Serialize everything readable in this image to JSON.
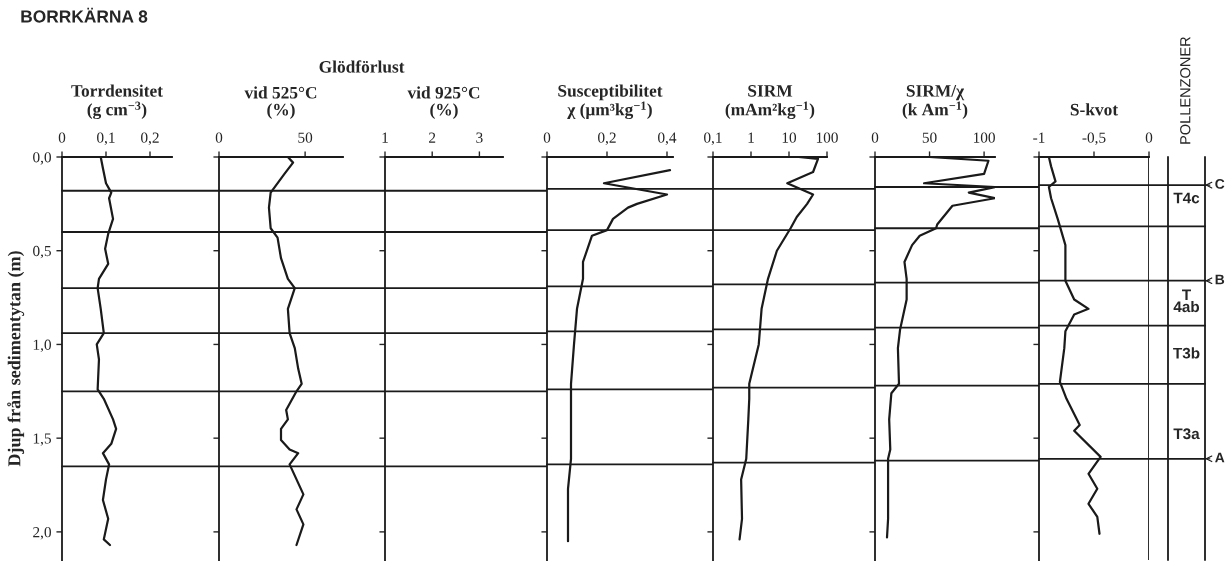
{
  "chart_data": [
    {
      "type": "line",
      "title": "Torrdensitet\n(g cm$^{−3}$)",
      "ylabel": "Djup från sedimentytan (m)",
      "annotations": [
        "BORRKÄRNA 8"
      ],
      "xlim": [
        0,
        0.25
      ],
      "xticks": [
        0,
        {
          "value": 0.1,
          "label": "0,1"
        },
        {
          "value": 0.2,
          "label": "0,2"
        }
      ],
      "ylim": [
        2.15,
        0
      ],
      "yticks": [
        {
          "value": 0,
          "label": "0,0"
        },
        {
          "value": 0.5,
          "label": "0,5"
        },
        {
          "value": 1,
          "label": "1,0"
        },
        {
          "value": 1.5,
          "label": "1,5"
        },
        {
          "value": 2,
          "label": "2,0"
        }
      ],
      "ref_lines": [
        {
          "axis": "y",
          "value": 0.18
        },
        {
          "axis": "y",
          "value": 0.4
        },
        {
          "axis": "y",
          "value": 0.7
        },
        {
          "axis": "y",
          "value": 0.94
        },
        {
          "axis": "y",
          "value": 1.25
        },
        {
          "axis": "y",
          "value": 1.65
        }
      ],
      "series": [
        {
          "color": "#1a1a1a",
          "x": [
            0.088,
            0.093,
            0.1,
            0.112,
            0.107,
            0.116,
            0.105,
            0.098,
            0.105,
            0.084,
            0.081,
            0.088,
            0.095,
            0.079,
            0.084,
            0.081,
            0.095,
            0.116,
            0.123,
            0.112,
            0.093,
            0.107,
            0.1,
            0.093,
            0.105,
            0.095,
            0.109
          ],
          "values": [
            0,
            0.06,
            0.14,
            0.19,
            0.22,
            0.33,
            0.41,
            0.49,
            0.57,
            0.65,
            0.7,
            0.81,
            0.94,
            1.0,
            1.08,
            1.24,
            1.29,
            1.4,
            1.45,
            1.53,
            1.58,
            1.64,
            1.72,
            1.83,
            1.93,
            2.04,
            2.07
          ]
        }
      ]
    },
    {
      "type": "line",
      "title": "vid 525°C\n(%)",
      "annotations": [
        "Glödförlust"
      ],
      "tick_labels": "x",
      "xlim": [
        0,
        72
      ],
      "xticks": [
        0,
        50
      ],
      "ylim": [
        2.15,
        0
      ],
      "yticks": [
        {
          "value": 0,
          "label": null
        },
        {
          "value": 0.5,
          "label": null
        },
        {
          "value": 1,
          "label": null
        },
        {
          "value": 1.5,
          "label": null
        },
        {
          "value": 2,
          "label": null
        }
      ],
      "ref_lines": [
        {
          "axis": "y",
          "value": 0.18
        },
        {
          "axis": "y",
          "value": 0.4
        },
        {
          "axis": "y",
          "value": 0.7
        },
        {
          "axis": "y",
          "value": 0.94
        },
        {
          "axis": "y",
          "value": 1.25
        },
        {
          "axis": "y",
          "value": 1.65
        }
      ],
      "series": [
        {
          "color": "#1a1a1a",
          "x": [
            40,
            43,
            38,
            30,
            29,
            30,
            34,
            36,
            40,
            44,
            40,
            41,
            44,
            46,
            48,
            45,
            39,
            40,
            36,
            36,
            41,
            46,
            41,
            45,
            49,
            45,
            49,
            45
          ],
          "values": [
            0,
            0.03,
            0.09,
            0.19,
            0.27,
            0.38,
            0.43,
            0.54,
            0.65,
            0.7,
            0.81,
            0.94,
            1.02,
            1.13,
            1.21,
            1.25,
            1.35,
            1.4,
            1.45,
            1.51,
            1.56,
            1.58,
            1.64,
            1.72,
            1.8,
            1.88,
            1.96,
            2.07
          ]
        }
      ]
    },
    {
      "type": "line",
      "title": "vid 925°C\n(%)",
      "tick_labels": "x",
      "xlim": [
        1,
        3.5
      ],
      "xticks": [
        1,
        2,
        3
      ],
      "ylim": [
        2.15,
        0
      ],
      "yticks": [
        {
          "value": 0,
          "label": null
        },
        {
          "value": 0.5,
          "label": null
        },
        {
          "value": 1,
          "label": null
        },
        {
          "value": 1.5,
          "label": null
        },
        {
          "value": 2,
          "label": null
        }
      ],
      "ref_lines": [
        {
          "axis": "y",
          "value": 0.18
        },
        {
          "axis": "y",
          "value": 0.4
        },
        {
          "axis": "y",
          "value": 0.7
        },
        {
          "axis": "y",
          "value": 0.94
        },
        {
          "axis": "y",
          "value": 1.25
        },
        {
          "axis": "y",
          "value": 1.65
        }
      ]
    },
    {
      "type": "line",
      "title": "Susceptibilitet\nχ (μm³kg$^{−1}$)",
      "tick_labels": "x",
      "xlim": [
        0,
        0.42
      ],
      "xticks": [
        0,
        {
          "value": 0.2,
          "label": "0,2"
        },
        {
          "value": 0.4,
          "label": "0,4"
        }
      ],
      "ylim": [
        2.15,
        0
      ],
      "yticks": [
        {
          "value": 0,
          "label": null
        },
        {
          "value": 0.5,
          "label": null
        },
        {
          "value": 1,
          "label": null
        },
        {
          "value": 1.5,
          "label": null
        },
        {
          "value": 2,
          "label": null
        }
      ],
      "ref_lines": [
        {
          "axis": "y",
          "value": 0.17
        },
        {
          "axis": "y",
          "value": 0.39
        },
        {
          "axis": "y",
          "value": 0.69
        },
        {
          "axis": "y",
          "value": 0.93
        },
        {
          "axis": "y",
          "value": 1.24
        },
        {
          "axis": "y",
          "value": 1.64
        }
      ],
      "series": [
        {
          "color": "#1a1a1a",
          "x": [
            0.41,
            0.19,
            0.4,
            0.3,
            0.27,
            0.22,
            0.2,
            0.15,
            0.12,
            0.12,
            0.1,
            0.09,
            0.08,
            0.08,
            0.08,
            0.07,
            0.07,
            0.07
          ],
          "values": [
            0.07,
            0.14,
            0.2,
            0.25,
            0.27,
            0.33,
            0.39,
            0.42,
            0.56,
            0.65,
            0.81,
            1.0,
            1.21,
            1.4,
            1.61,
            1.77,
            1.93,
            2.05
          ]
        }
      ]
    },
    {
      "type": "line",
      "title": "SIRM\n(mAm²kg$^{−1}$)",
      "tick_labels": "x",
      "log": "x",
      "xlim": [
        0.1,
        100
      ],
      "xticks": [
        {
          "value": 0.1,
          "label": "0,1"
        },
        1,
        10,
        100
      ],
      "ylim": [
        2.15,
        0
      ],
      "yticks": [
        {
          "value": 0,
          "label": null
        },
        {
          "value": 0.5,
          "label": null
        },
        {
          "value": 1,
          "label": null
        },
        {
          "value": 1.5,
          "label": null
        },
        {
          "value": 2,
          "label": null
        }
      ],
      "ref_lines": [
        {
          "axis": "y",
          "value": 0.17
        },
        {
          "axis": "y",
          "value": 0.39
        },
        {
          "axis": "y",
          "value": 0.68
        },
        {
          "axis": "y",
          "value": 0.92
        },
        {
          "axis": "y",
          "value": 1.23
        },
        {
          "axis": "y",
          "value": 1.63
        }
      ],
      "series": [
        {
          "color": "#1a1a1a",
          "x": [
            18,
            58,
            43,
            9,
            43,
            30,
            16,
            11,
            4.8,
            2.8,
            1.9,
            1.6,
            0.9,
            0.9,
            0.85,
            0.75,
            0.55,
            0.58,
            0.5
          ],
          "values": [
            0,
            0.01,
            0.08,
            0.14,
            0.2,
            0.25,
            0.32,
            0.38,
            0.5,
            0.65,
            0.81,
            1.0,
            1.21,
            1.29,
            1.4,
            1.61,
            1.72,
            1.93,
            2.04
          ]
        }
      ]
    },
    {
      "type": "line",
      "title": "SIRM/χ\n(k Am$^{−1}$)",
      "tick_labels": "x",
      "xlim": [
        0,
        110
      ],
      "xticks": [
        0,
        50,
        100
      ],
      "ylim": [
        2.15,
        0
      ],
      "yticks": [
        {
          "value": 0,
          "label": null
        },
        {
          "value": 0.5,
          "label": null
        },
        {
          "value": 1,
          "label": null
        },
        {
          "value": 1.5,
          "label": null
        },
        {
          "value": 2,
          "label": null
        }
      ],
      "ref_lines": [
        {
          "axis": "y",
          "value": 0.16
        },
        {
          "axis": "y",
          "value": 0.38
        },
        {
          "axis": "y",
          "value": 0.67
        },
        {
          "axis": "y",
          "value": 0.91
        },
        {
          "axis": "y",
          "value": 1.22
        },
        {
          "axis": "y",
          "value": 1.62
        }
      ],
      "series": [
        {
          "color": "#1a1a1a",
          "x": [
            50,
            104,
            100,
            45,
            110,
            86,
            110,
            71,
            57,
            56,
            41,
            34,
            27,
            29,
            29,
            23,
            21,
            22,
            15,
            13,
            14,
            12,
            12,
            12,
            11
          ],
          "values": [
            0,
            0.02,
            0.09,
            0.14,
            0.16,
            0.19,
            0.22,
            0.26,
            0.36,
            0.38,
            0.42,
            0.47,
            0.56,
            0.65,
            0.76,
            0.92,
            1.02,
            1.21,
            1.26,
            1.4,
            1.56,
            1.61,
            1.77,
            1.93,
            2.03
          ]
        }
      ]
    },
    {
      "type": "line",
      "title": "S-kvot",
      "tick_labels": "x",
      "xlim": [
        -1,
        0
      ],
      "xticks": [
        -1,
        {
          "value": -0.5,
          "label": "-0,5"
        },
        0
      ],
      "ylim": [
        2.15,
        0
      ],
      "yticks": [
        {
          "value": 0,
          "label": null
        },
        {
          "value": 0.5,
          "label": null
        },
        {
          "value": 1,
          "label": null
        },
        {
          "value": 1.5,
          "label": null
        },
        {
          "value": 2,
          "label": null
        }
      ],
      "annotations": [
        "POLLENZONER",
        "T4c",
        "T\n4ab",
        "T3b",
        "T3a"
      ],
      "ref_lines": [
        {
          "axis": "x",
          "value": 0
        },
        {
          "axis": "y",
          "value": 0.15,
          "label": "C"
        },
        {
          "axis": "y",
          "value": 0.37
        },
        {
          "axis": "y",
          "value": 0.66,
          "label": "B"
        },
        {
          "axis": "y",
          "value": 0.9
        },
        {
          "axis": "y",
          "value": 1.21
        },
        {
          "axis": "y",
          "value": 1.61,
          "label": "A"
        }
      ],
      "series": [
        {
          "color": "#1a1a1a",
          "x": [
            -0.91,
            -0.89,
            -0.85,
            -0.91,
            -0.89,
            -0.83,
            -0.76,
            -0.76,
            -0.68,
            -0.55,
            -0.68,
            -0.76,
            -0.77,
            -0.81,
            -0.75,
            -0.63,
            -0.68,
            -0.44,
            -0.55,
            -0.47,
            -0.55,
            -0.47,
            -0.45
          ],
          "values": [
            0,
            0.05,
            0.13,
            0.16,
            0.22,
            0.33,
            0.47,
            0.66,
            0.76,
            0.81,
            0.84,
            0.93,
            1.02,
            1.2,
            1.29,
            1.43,
            1.46,
            1.6,
            1.69,
            1.77,
            1.85,
            1.92,
            2.01
          ]
        }
      ]
    }
  ]
}
